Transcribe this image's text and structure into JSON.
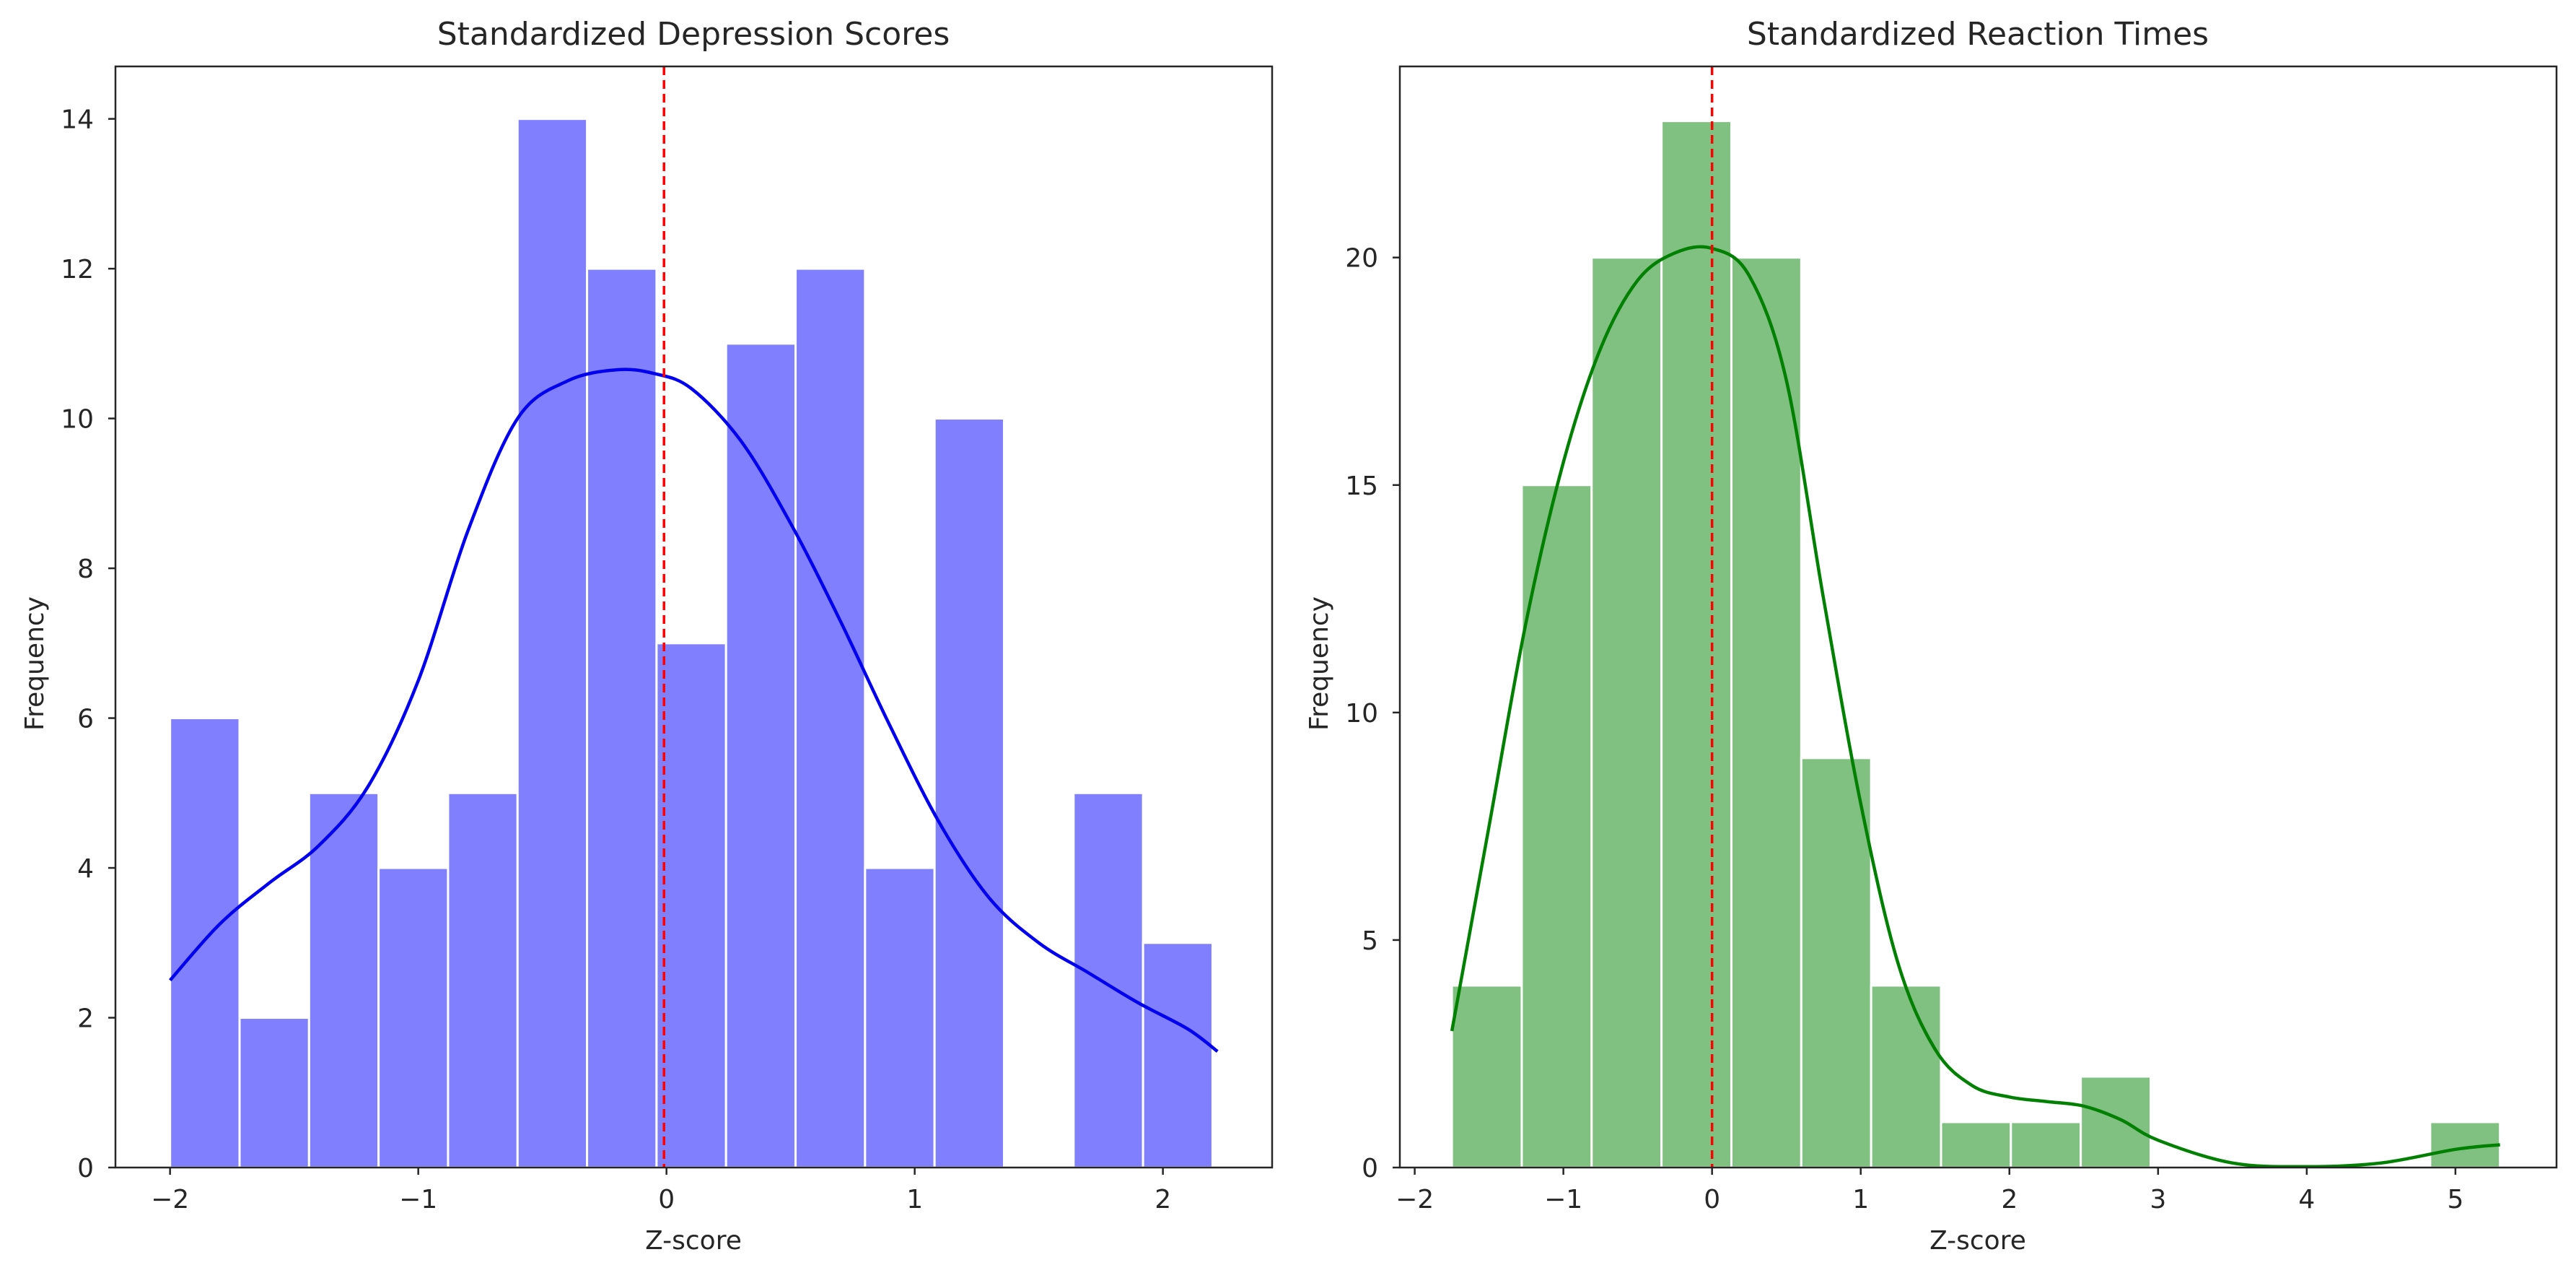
{
  "chart_data": [
    {
      "type": "bar",
      "title": "Standardized Depression Scores",
      "xlabel": "Z-score",
      "ylabel": "Frequency",
      "xlim": [
        -2.22,
        2.44
      ],
      "ylim": [
        0,
        14.7
      ],
      "xticks": [
        -2,
        -1,
        0,
        1,
        2
      ],
      "yticks": [
        0,
        2,
        4,
        6,
        8,
        10,
        12,
        14
      ],
      "grid": false,
      "bin_edges": [
        -2.0,
        -1.72,
        -1.44,
        -1.16,
        -0.88,
        -0.6,
        -0.32,
        -0.04,
        0.24,
        0.52,
        0.8,
        1.08,
        1.36,
        1.64,
        1.92,
        2.2
      ],
      "counts": [
        6,
        2,
        5,
        4,
        5,
        14,
        12,
        7,
        11,
        12,
        4,
        10,
        0,
        5,
        3
      ],
      "kde": {
        "x": [
          -2.0,
          -1.8,
          -1.6,
          -1.4,
          -1.2,
          -1.0,
          -0.8,
          -0.6,
          -0.4,
          -0.2,
          -0.05,
          0.1,
          0.3,
          0.5,
          0.7,
          0.9,
          1.1,
          1.3,
          1.5,
          1.7,
          1.9,
          2.1,
          2.22
        ],
        "y": [
          2.5,
          3.25,
          3.8,
          4.3,
          5.1,
          6.5,
          8.5,
          10.0,
          10.5,
          10.65,
          10.6,
          10.4,
          9.7,
          8.6,
          7.3,
          5.9,
          4.6,
          3.6,
          3.0,
          2.6,
          2.2,
          1.85,
          1.55
        ]
      },
      "mean_line_x": -0.01,
      "colors": {
        "bar": "#8080ff",
        "kde": "#0000ee",
        "mean_line": "#ff0000"
      }
    },
    {
      "type": "bar",
      "title": "Standardized Reaction Times",
      "xlabel": "Z-score",
      "ylabel": "Frequency",
      "xlim": [
        -2.1,
        5.68
      ],
      "ylim": [
        0,
        24.2
      ],
      "xticks": [
        -2,
        -1,
        0,
        1,
        2,
        3,
        4,
        5
      ],
      "yticks": [
        0,
        5,
        10,
        15,
        20
      ],
      "grid": false,
      "bin_edges": [
        -1.75,
        -1.28,
        -0.81,
        -0.34,
        0.13,
        0.6,
        1.07,
        1.54,
        2.01,
        2.48,
        2.95,
        3.42,
        3.89,
        4.36,
        4.83,
        5.3
      ],
      "counts": [
        4,
        15,
        20,
        23,
        20,
        9,
        4,
        1,
        1,
        2,
        0,
        0,
        0,
        0,
        1
      ],
      "kde": {
        "x": [
          -1.75,
          -1.5,
          -1.25,
          -1.0,
          -0.75,
          -0.5,
          -0.25,
          0.0,
          0.25,
          0.5,
          0.75,
          1.0,
          1.25,
          1.5,
          1.75,
          2.0,
          2.25,
          2.5,
          2.75,
          3.0,
          3.5,
          4.0,
          4.5,
          5.0,
          5.3
        ],
        "y": [
          3.0,
          7.5,
          12.0,
          15.5,
          18.0,
          19.5,
          20.1,
          20.2,
          19.6,
          17.3,
          12.5,
          8.0,
          4.5,
          2.6,
          1.8,
          1.55,
          1.45,
          1.35,
          1.05,
          0.6,
          0.1,
          0.02,
          0.1,
          0.4,
          0.5
        ]
      },
      "mean_line_x": 0.0,
      "colors": {
        "bar": "#80c080",
        "kde": "#008000",
        "mean_line": "#ff0000"
      }
    }
  ]
}
